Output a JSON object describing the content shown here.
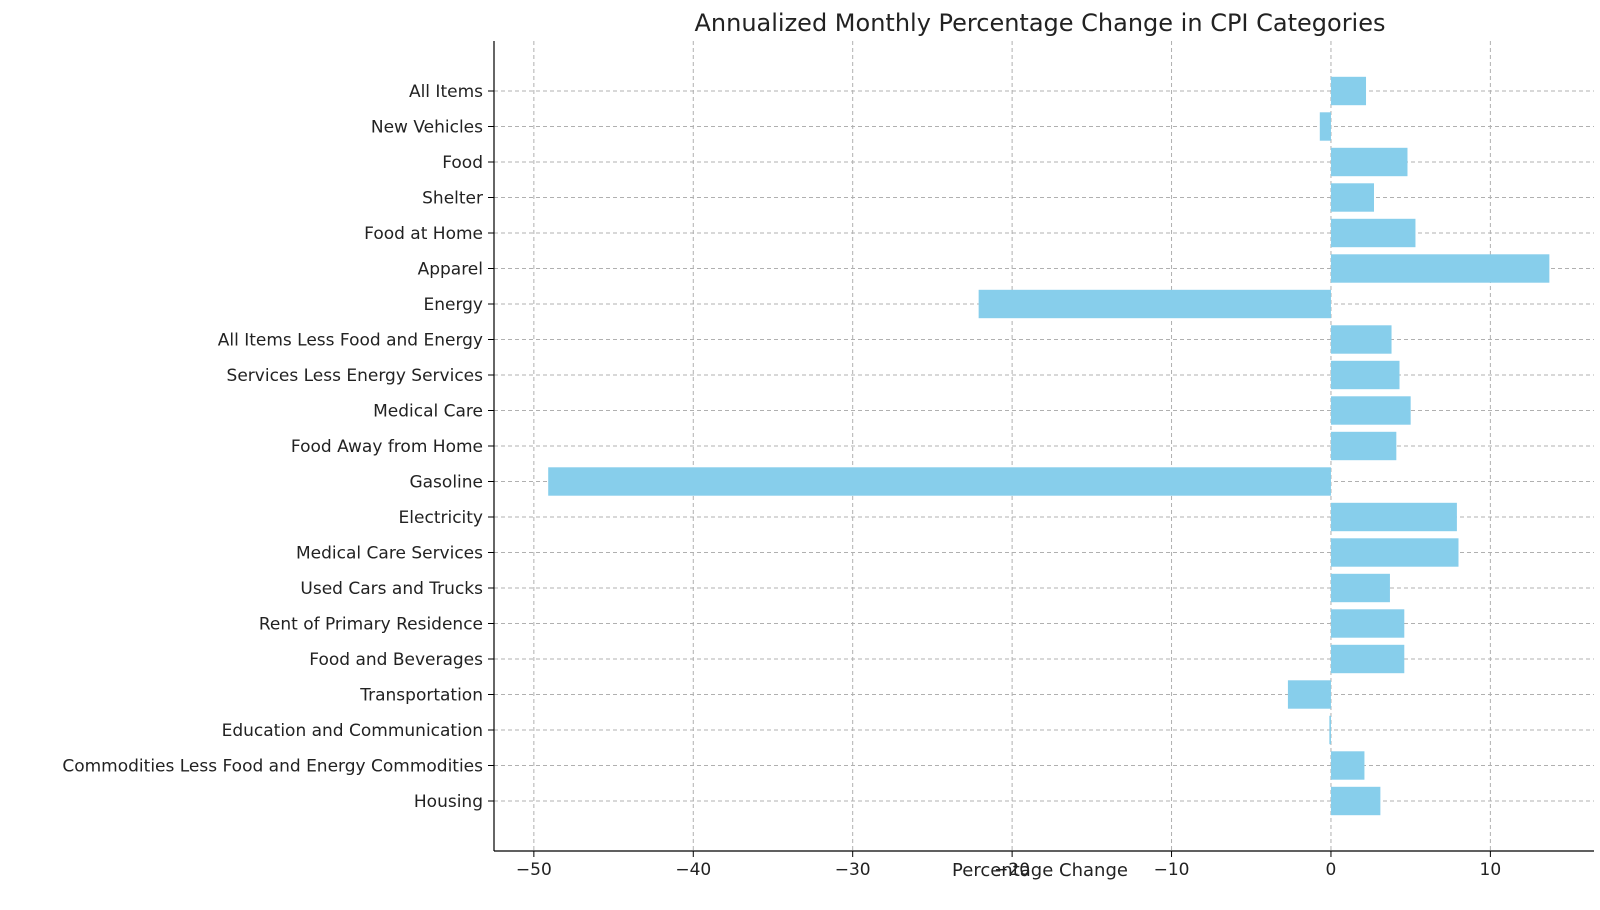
{
  "chart_data": {
    "type": "bar",
    "orientation": "horizontal",
    "title": "Annualized Monthly Percentage Change in CPI Categories",
    "xlabel": "Percentage Change",
    "ylabel": "",
    "xlim": [
      -52.5,
      16.5
    ],
    "xticks": [
      -50,
      -40,
      -30,
      -20,
      -10,
      0,
      10
    ],
    "xtick_labels": [
      "−50",
      "−40",
      "−30",
      "−20",
      "−10",
      "0",
      "10"
    ],
    "grid": true,
    "bar_color": "#87CEEB",
    "categories": [
      "All Items",
      "New Vehicles",
      "Food",
      "Shelter",
      "Food at Home",
      "Apparel",
      "Energy",
      "All Items Less Food and Energy",
      "Services Less Energy Services",
      "Medical Care",
      "Food Away from Home",
      "Gasoline",
      "Electricity",
      "Medical Care Services",
      "Used Cars and Trucks",
      "Rent of Primary Residence",
      "Food and Beverages",
      "Transportation",
      "Education and Communication",
      "Commodities Less Food and Energy Commodities",
      "Housing"
    ],
    "values": [
      2.2,
      -0.7,
      4.8,
      2.7,
      5.3,
      13.7,
      -22.1,
      3.8,
      4.3,
      5.0,
      4.1,
      -49.1,
      7.9,
      8.0,
      3.7,
      4.6,
      4.6,
      -2.7,
      -0.1,
      2.1,
      3.1
    ]
  }
}
